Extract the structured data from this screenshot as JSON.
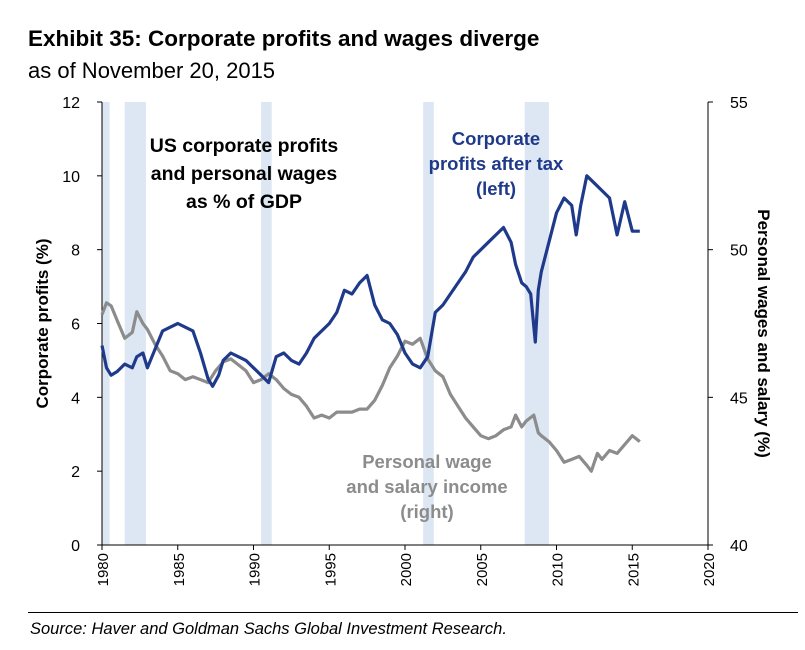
{
  "header": {
    "title": "Exhibit 35: Corporate profits and wages diverge",
    "subtitle": "as of November 20, 2015"
  },
  "footer": {
    "source": "Source: Haver and Goldman Sachs Global Investment Research."
  },
  "colors": {
    "profits": "#1f3a8a",
    "wages": "#8c8c8c",
    "recession": "#dde6f3"
  },
  "chart_data": {
    "type": "line",
    "annotations": [
      "US corporate profits",
      "and personal wages",
      "as % of GDP"
    ],
    "ylabel_left": "Corporate profits (%)",
    "ylabel_right": "Personal wages and salary (%)",
    "xlim": [
      1980,
      2020
    ],
    "ylim_left": [
      0,
      12
    ],
    "ylim_right": [
      40,
      55
    ],
    "x_ticks": [
      "1980",
      "1985",
      "1990",
      "1995",
      "2000",
      "2005",
      "2010",
      "2015",
      "2020"
    ],
    "y_ticks_left": [
      "0",
      "2",
      "4",
      "6",
      "8",
      "10",
      "12"
    ],
    "y_ticks_right": [
      "40",
      "45",
      "50",
      "55"
    ],
    "grid": false,
    "recession_shading": [
      [
        1980.0,
        1980.5
      ],
      [
        1981.5,
        1982.9
      ],
      [
        1990.5,
        1991.2
      ],
      [
        2001.2,
        2001.9
      ],
      [
        2007.9,
        2009.5
      ]
    ],
    "series": [
      {
        "name_lines": [
          "Corporate",
          "profits after tax",
          "(left)"
        ],
        "axis": "left",
        "points": [
          [
            1980.0,
            5.4
          ],
          [
            1980.3,
            4.8
          ],
          [
            1980.6,
            4.6
          ],
          [
            1981.0,
            4.7
          ],
          [
            1981.5,
            4.9
          ],
          [
            1982.0,
            4.8
          ],
          [
            1982.3,
            5.1
          ],
          [
            1982.7,
            5.2
          ],
          [
            1983.0,
            4.8
          ],
          [
            1983.5,
            5.3
          ],
          [
            1984.0,
            5.8
          ],
          [
            1984.5,
            5.9
          ],
          [
            1985.0,
            6.0
          ],
          [
            1985.5,
            5.9
          ],
          [
            1986.0,
            5.8
          ],
          [
            1986.5,
            5.2
          ],
          [
            1987.0,
            4.5
          ],
          [
            1987.3,
            4.3
          ],
          [
            1987.7,
            4.6
          ],
          [
            1988.0,
            5.0
          ],
          [
            1988.5,
            5.2
          ],
          [
            1989.0,
            5.1
          ],
          [
            1989.5,
            5.0
          ],
          [
            1990.0,
            4.8
          ],
          [
            1990.5,
            4.6
          ],
          [
            1991.0,
            4.4
          ],
          [
            1991.5,
            5.1
          ],
          [
            1992.0,
            5.2
          ],
          [
            1992.5,
            5.0
          ],
          [
            1993.0,
            4.9
          ],
          [
            1993.5,
            5.2
          ],
          [
            1994.0,
            5.6
          ],
          [
            1994.5,
            5.8
          ],
          [
            1995.0,
            6.0
          ],
          [
            1995.5,
            6.3
          ],
          [
            1996.0,
            6.9
          ],
          [
            1996.5,
            6.8
          ],
          [
            1997.0,
            7.1
          ],
          [
            1997.5,
            7.3
          ],
          [
            1998.0,
            6.5
          ],
          [
            1998.5,
            6.1
          ],
          [
            1999.0,
            6.0
          ],
          [
            1999.5,
            5.7
          ],
          [
            2000.0,
            5.2
          ],
          [
            2000.5,
            4.9
          ],
          [
            2001.0,
            4.8
          ],
          [
            2001.5,
            5.1
          ],
          [
            2002.0,
            6.3
          ],
          [
            2002.5,
            6.5
          ],
          [
            2003.0,
            6.8
          ],
          [
            2003.5,
            7.1
          ],
          [
            2004.0,
            7.4
          ],
          [
            2004.5,
            7.8
          ],
          [
            2005.0,
            8.0
          ],
          [
            2005.5,
            8.2
          ],
          [
            2006.0,
            8.4
          ],
          [
            2006.5,
            8.6
          ],
          [
            2007.0,
            8.2
          ],
          [
            2007.3,
            7.6
          ],
          [
            2007.7,
            7.1
          ],
          [
            2008.0,
            7.0
          ],
          [
            2008.3,
            6.8
          ],
          [
            2008.6,
            5.5
          ],
          [
            2008.8,
            6.9
          ],
          [
            2009.0,
            7.4
          ],
          [
            2009.5,
            8.2
          ],
          [
            2010.0,
            9.0
          ],
          [
            2010.5,
            9.4
          ],
          [
            2011.0,
            9.2
          ],
          [
            2011.3,
            8.4
          ],
          [
            2011.6,
            9.2
          ],
          [
            2012.0,
            10.0
          ],
          [
            2012.5,
            9.8
          ],
          [
            2013.0,
            9.6
          ],
          [
            2013.5,
            9.4
          ],
          [
            2014.0,
            8.4
          ],
          [
            2014.5,
            9.3
          ],
          [
            2015.0,
            8.5
          ],
          [
            2015.5,
            8.5
          ]
        ]
      },
      {
        "name_lines": [
          "Personal wage",
          "and salary income",
          "(right)"
        ],
        "axis": "right",
        "points": [
          [
            1980.0,
            47.8
          ],
          [
            1980.3,
            48.2
          ],
          [
            1980.6,
            48.1
          ],
          [
            1981.0,
            47.6
          ],
          [
            1981.5,
            47.0
          ],
          [
            1982.0,
            47.2
          ],
          [
            1982.3,
            47.9
          ],
          [
            1982.7,
            47.5
          ],
          [
            1983.0,
            47.3
          ],
          [
            1983.5,
            46.8
          ],
          [
            1984.0,
            46.4
          ],
          [
            1984.5,
            45.9
          ],
          [
            1985.0,
            45.8
          ],
          [
            1985.5,
            45.6
          ],
          [
            1986.0,
            45.7
          ],
          [
            1986.5,
            45.6
          ],
          [
            1987.0,
            45.5
          ],
          [
            1987.5,
            45.9
          ],
          [
            1988.0,
            46.2
          ],
          [
            1988.5,
            46.3
          ],
          [
            1989.0,
            46.1
          ],
          [
            1989.5,
            45.9
          ],
          [
            1990.0,
            45.5
          ],
          [
            1990.5,
            45.6
          ],
          [
            1991.0,
            45.8
          ],
          [
            1991.5,
            45.6
          ],
          [
            1992.0,
            45.3
          ],
          [
            1992.5,
            45.1
          ],
          [
            1993.0,
            45.0
          ],
          [
            1993.5,
            44.7
          ],
          [
            1994.0,
            44.3
          ],
          [
            1994.5,
            44.4
          ],
          [
            1995.0,
            44.3
          ],
          [
            1995.5,
            44.5
          ],
          [
            1996.0,
            44.5
          ],
          [
            1996.5,
            44.5
          ],
          [
            1997.0,
            44.6
          ],
          [
            1997.5,
            44.6
          ],
          [
            1998.0,
            44.9
          ],
          [
            1998.5,
            45.4
          ],
          [
            1999.0,
            46.0
          ],
          [
            1999.5,
            46.4
          ],
          [
            2000.0,
            46.9
          ],
          [
            2000.5,
            46.8
          ],
          [
            2001.0,
            47.0
          ],
          [
            2001.5,
            46.3
          ],
          [
            2002.0,
            45.9
          ],
          [
            2002.5,
            45.7
          ],
          [
            2003.0,
            45.1
          ],
          [
            2003.5,
            44.7
          ],
          [
            2004.0,
            44.3
          ],
          [
            2004.5,
            44.0
          ],
          [
            2005.0,
            43.7
          ],
          [
            2005.5,
            43.6
          ],
          [
            2006.0,
            43.7
          ],
          [
            2006.5,
            43.9
          ],
          [
            2007.0,
            44.0
          ],
          [
            2007.3,
            44.4
          ],
          [
            2007.7,
            44.0
          ],
          [
            2008.0,
            44.2
          ],
          [
            2008.5,
            44.4
          ],
          [
            2008.8,
            43.8
          ],
          [
            2009.0,
            43.7
          ],
          [
            2009.5,
            43.5
          ],
          [
            2010.0,
            43.2
          ],
          [
            2010.5,
            42.8
          ],
          [
            2011.0,
            42.9
          ],
          [
            2011.5,
            43.0
          ],
          [
            2012.0,
            42.7
          ],
          [
            2012.3,
            42.5
          ],
          [
            2012.7,
            43.1
          ],
          [
            2013.0,
            42.9
          ],
          [
            2013.5,
            43.2
          ],
          [
            2014.0,
            43.1
          ],
          [
            2014.5,
            43.4
          ],
          [
            2015.0,
            43.7
          ],
          [
            2015.5,
            43.5
          ]
        ]
      }
    ]
  }
}
